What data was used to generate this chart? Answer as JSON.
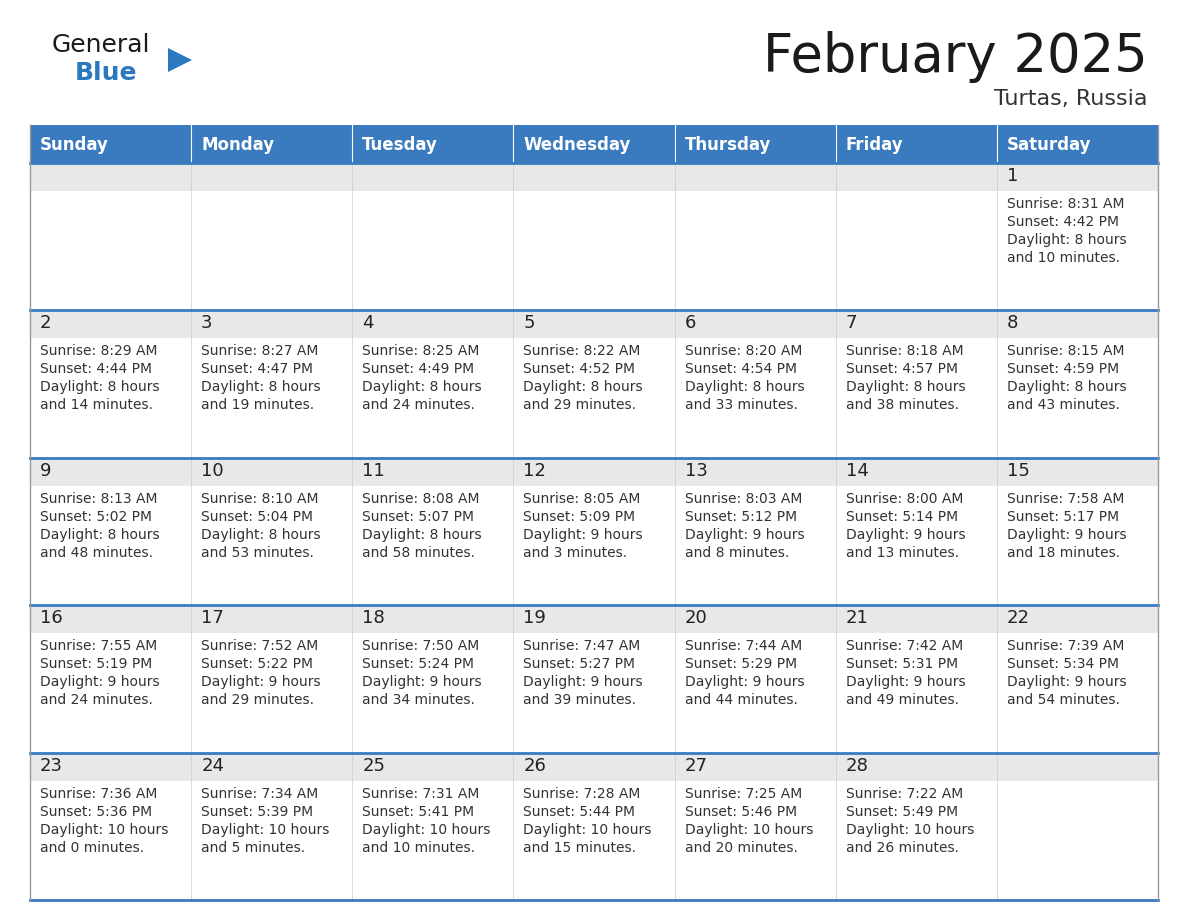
{
  "title": "February 2025",
  "subtitle": "Turtas, Russia",
  "header_bg": "#3a7abf",
  "header_text": "#ffffff",
  "row_separator_color": "#3a7abf",
  "cell_top_bg": "#e8e8e8",
  "cell_body_bg": "#ffffff",
  "cell_border_color": "#cccccc",
  "day_headers": [
    "Sunday",
    "Monday",
    "Tuesday",
    "Wednesday",
    "Thursday",
    "Friday",
    "Saturday"
  ],
  "title_color": "#1a1a1a",
  "subtitle_color": "#333333",
  "day_number_color": "#222222",
  "info_color": "#333333",
  "general_black": "#1a1a1a",
  "general_blue": "#2a78be",
  "calendar_data": [
    [
      null,
      null,
      null,
      null,
      null,
      null,
      {
        "day": "1",
        "sunrise": "8:31 AM",
        "sunset": "4:42 PM",
        "daylight": "8 hours",
        "daylight2": "and 10 minutes."
      }
    ],
    [
      {
        "day": "2",
        "sunrise": "8:29 AM",
        "sunset": "4:44 PM",
        "daylight": "8 hours",
        "daylight2": "and 14 minutes."
      },
      {
        "day": "3",
        "sunrise": "8:27 AM",
        "sunset": "4:47 PM",
        "daylight": "8 hours",
        "daylight2": "and 19 minutes."
      },
      {
        "day": "4",
        "sunrise": "8:25 AM",
        "sunset": "4:49 PM",
        "daylight": "8 hours",
        "daylight2": "and 24 minutes."
      },
      {
        "day": "5",
        "sunrise": "8:22 AM",
        "sunset": "4:52 PM",
        "daylight": "8 hours",
        "daylight2": "and 29 minutes."
      },
      {
        "day": "6",
        "sunrise": "8:20 AM",
        "sunset": "4:54 PM",
        "daylight": "8 hours",
        "daylight2": "and 33 minutes."
      },
      {
        "day": "7",
        "sunrise": "8:18 AM",
        "sunset": "4:57 PM",
        "daylight": "8 hours",
        "daylight2": "and 38 minutes."
      },
      {
        "day": "8",
        "sunrise": "8:15 AM",
        "sunset": "4:59 PM",
        "daylight": "8 hours",
        "daylight2": "and 43 minutes."
      }
    ],
    [
      {
        "day": "9",
        "sunrise": "8:13 AM",
        "sunset": "5:02 PM",
        "daylight": "8 hours",
        "daylight2": "and 48 minutes."
      },
      {
        "day": "10",
        "sunrise": "8:10 AM",
        "sunset": "5:04 PM",
        "daylight": "8 hours",
        "daylight2": "and 53 minutes."
      },
      {
        "day": "11",
        "sunrise": "8:08 AM",
        "sunset": "5:07 PM",
        "daylight": "8 hours",
        "daylight2": "and 58 minutes."
      },
      {
        "day": "12",
        "sunrise": "8:05 AM",
        "sunset": "5:09 PM",
        "daylight": "9 hours",
        "daylight2": "and 3 minutes."
      },
      {
        "day": "13",
        "sunrise": "8:03 AM",
        "sunset": "5:12 PM",
        "daylight": "9 hours",
        "daylight2": "and 8 minutes."
      },
      {
        "day": "14",
        "sunrise": "8:00 AM",
        "sunset": "5:14 PM",
        "daylight": "9 hours",
        "daylight2": "and 13 minutes."
      },
      {
        "day": "15",
        "sunrise": "7:58 AM",
        "sunset": "5:17 PM",
        "daylight": "9 hours",
        "daylight2": "and 18 minutes."
      }
    ],
    [
      {
        "day": "16",
        "sunrise": "7:55 AM",
        "sunset": "5:19 PM",
        "daylight": "9 hours",
        "daylight2": "and 24 minutes."
      },
      {
        "day": "17",
        "sunrise": "7:52 AM",
        "sunset": "5:22 PM",
        "daylight": "9 hours",
        "daylight2": "and 29 minutes."
      },
      {
        "day": "18",
        "sunrise": "7:50 AM",
        "sunset": "5:24 PM",
        "daylight": "9 hours",
        "daylight2": "and 34 minutes."
      },
      {
        "day": "19",
        "sunrise": "7:47 AM",
        "sunset": "5:27 PM",
        "daylight": "9 hours",
        "daylight2": "and 39 minutes."
      },
      {
        "day": "20",
        "sunrise": "7:44 AM",
        "sunset": "5:29 PM",
        "daylight": "9 hours",
        "daylight2": "and 44 minutes."
      },
      {
        "day": "21",
        "sunrise": "7:42 AM",
        "sunset": "5:31 PM",
        "daylight": "9 hours",
        "daylight2": "and 49 minutes."
      },
      {
        "day": "22",
        "sunrise": "7:39 AM",
        "sunset": "5:34 PM",
        "daylight": "9 hours",
        "daylight2": "and 54 minutes."
      }
    ],
    [
      {
        "day": "23",
        "sunrise": "7:36 AM",
        "sunset": "5:36 PM",
        "daylight": "10 hours",
        "daylight2": "and 0 minutes."
      },
      {
        "day": "24",
        "sunrise": "7:34 AM",
        "sunset": "5:39 PM",
        "daylight": "10 hours",
        "daylight2": "and 5 minutes."
      },
      {
        "day": "25",
        "sunrise": "7:31 AM",
        "sunset": "5:41 PM",
        "daylight": "10 hours",
        "daylight2": "and 10 minutes."
      },
      {
        "day": "26",
        "sunrise": "7:28 AM",
        "sunset": "5:44 PM",
        "daylight": "10 hours",
        "daylight2": "and 15 minutes."
      },
      {
        "day": "27",
        "sunrise": "7:25 AM",
        "sunset": "5:46 PM",
        "daylight": "10 hours",
        "daylight2": "and 20 minutes."
      },
      {
        "day": "28",
        "sunrise": "7:22 AM",
        "sunset": "5:49 PM",
        "daylight": "10 hours",
        "daylight2": "and 26 minutes."
      },
      null
    ]
  ]
}
